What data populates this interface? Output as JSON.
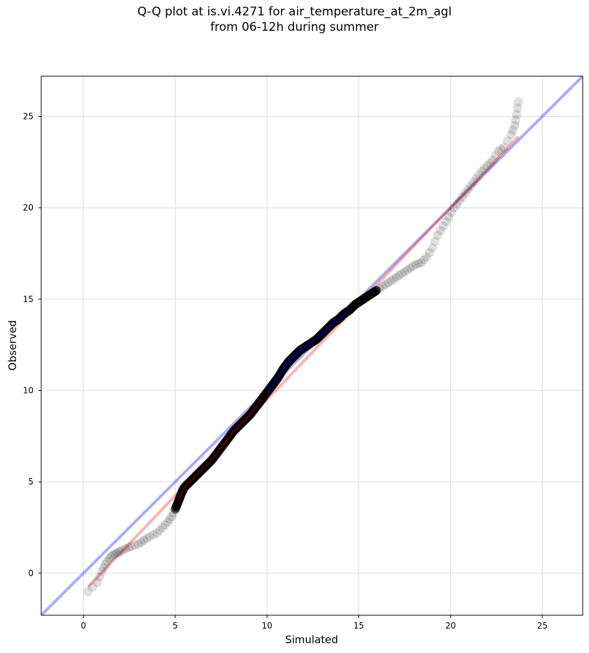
{
  "chart_data": {
    "type": "scatter",
    "title_line1": "Q-Q plot at is.vi.4271 for air_temperature_at_2m_agl",
    "title_line2": "from 06-12h during summer",
    "xlabel": "Simulated",
    "ylabel": "Observed",
    "xlim": [
      -2.3,
      27.2
    ],
    "ylim": [
      -2.3,
      27.2
    ],
    "xticks": [
      0,
      5,
      10,
      15,
      20,
      25
    ],
    "yticks": [
      0,
      5,
      10,
      15,
      20,
      25
    ],
    "grid": true,
    "quantiles": [
      [
        0.25,
        -1.0
      ],
      [
        0.75,
        -0.5
      ],
      [
        1.0,
        0.1
      ],
      [
        1.2,
        0.5
      ],
      [
        1.4,
        0.8
      ],
      [
        1.6,
        1.0
      ],
      [
        1.8,
        1.1
      ],
      [
        2.0,
        1.2
      ],
      [
        2.3,
        1.35
      ],
      [
        2.6,
        1.45
      ],
      [
        3.0,
        1.6
      ],
      [
        3.3,
        1.8
      ],
      [
        3.6,
        2.0
      ],
      [
        4.0,
        2.2
      ],
      [
        4.3,
        2.5
      ],
      [
        4.6,
        2.8
      ],
      [
        4.8,
        3.1
      ],
      [
        5.0,
        3.5
      ],
      [
        5.2,
        4.0
      ],
      [
        5.35,
        4.4
      ],
      [
        5.5,
        4.7
      ],
      [
        5.8,
        5.0
      ],
      [
        6.1,
        5.3
      ],
      [
        6.4,
        5.6
      ],
      [
        6.7,
        5.9
      ],
      [
        7.0,
        6.2
      ],
      [
        7.3,
        6.6
      ],
      [
        7.6,
        7.0
      ],
      [
        7.9,
        7.4
      ],
      [
        8.2,
        7.8
      ],
      [
        8.5,
        8.1
      ],
      [
        8.8,
        8.4
      ],
      [
        9.1,
        8.7
      ],
      [
        9.4,
        9.1
      ],
      [
        9.7,
        9.5
      ],
      [
        10.0,
        9.9
      ],
      [
        10.3,
        10.3
      ],
      [
        10.6,
        10.7
      ],
      [
        10.9,
        11.2
      ],
      [
        11.2,
        11.6
      ],
      [
        11.5,
        11.9
      ],
      [
        11.8,
        12.2
      ],
      [
        12.1,
        12.4
      ],
      [
        12.4,
        12.6
      ],
      [
        12.7,
        12.8
      ],
      [
        13.0,
        13.1
      ],
      [
        13.3,
        13.4
      ],
      [
        13.6,
        13.7
      ],
      [
        13.9,
        13.9
      ],
      [
        14.2,
        14.2
      ],
      [
        14.5,
        14.4
      ],
      [
        14.8,
        14.7
      ],
      [
        15.1,
        14.9
      ],
      [
        15.4,
        15.1
      ],
      [
        15.7,
        15.3
      ],
      [
        16.0,
        15.5
      ],
      [
        16.3,
        15.7
      ],
      [
        16.6,
        15.9
      ],
      [
        16.9,
        16.1
      ],
      [
        17.2,
        16.3
      ],
      [
        17.5,
        16.5
      ],
      [
        17.8,
        16.7
      ],
      [
        18.1,
        16.9
      ],
      [
        18.4,
        17.0
      ],
      [
        18.7,
        17.3
      ],
      [
        19.0,
        17.8
      ],
      [
        19.3,
        18.5
      ],
      [
        19.6,
        19.0
      ],
      [
        19.9,
        19.5
      ],
      [
        20.2,
        20.0
      ],
      [
        20.5,
        20.4
      ],
      [
        20.8,
        20.8
      ],
      [
        21.1,
        21.2
      ],
      [
        21.4,
        21.6
      ],
      [
        21.7,
        22.0
      ],
      [
        22.0,
        22.3
      ],
      [
        22.3,
        22.6
      ],
      [
        22.6,
        23.1
      ],
      [
        22.9,
        23.3
      ],
      [
        23.3,
        24.0
      ],
      [
        23.5,
        24.5
      ],
      [
        23.6,
        25.1
      ],
      [
        23.7,
        25.8
      ]
    ],
    "reference_line": {
      "from": [
        -2.3,
        -2.3
      ],
      "to": [
        27.2,
        27.2
      ],
      "color": "#0000ee"
    },
    "fit_line": {
      "from": [
        0.25,
        -0.75
      ],
      "to": [
        23.7,
        23.9
      ],
      "color": "#ff0000"
    },
    "point_color": "#000000",
    "mid_highlight_color": "#00008b",
    "low_highlight_color": "#8b0000"
  }
}
